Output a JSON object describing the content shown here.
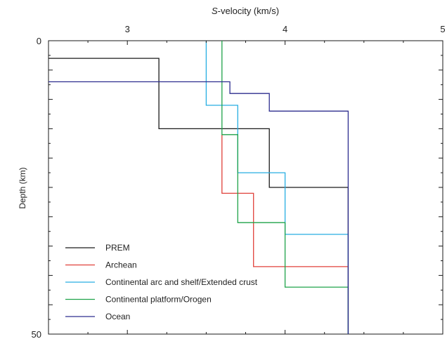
{
  "chart_data": {
    "type": "line",
    "title": "",
    "xlabel_prefix": "S",
    "xlabel_rest": "-velocity (km/s)",
    "ylabel": "Depth (km)",
    "xlim": [
      2.5,
      5
    ],
    "ylim": [
      0,
      50
    ],
    "x_ticks": [
      3,
      4,
      5
    ],
    "y_ticks": [
      0,
      50
    ],
    "x_axis_position": "top",
    "y_inverted": true,
    "grid": false,
    "legend_position": "bottom-left",
    "series": [
      {
        "name": "PREM",
        "color": "#1a1a1a",
        "x": [
          2.5,
          3.2,
          3.2,
          3.2,
          3.2,
          3.9,
          3.9,
          4.4,
          4.4
        ],
        "y": [
          3,
          3,
          3,
          15,
          15,
          15,
          25,
          25,
          50
        ]
      },
      {
        "name": "Archean",
        "color": "#e0403a",
        "x": [
          3.6,
          3.6,
          3.6,
          3.8,
          3.8,
          4.4,
          4.4
        ],
        "y": [
          16,
          16,
          26,
          26,
          38.5,
          38.5,
          50
        ]
      },
      {
        "name": "Continental arc and shelf/Extended crust",
        "color": "#27aee2",
        "x": [
          3.5,
          3.5,
          3.7,
          3.7,
          4.0,
          4.0,
          4.4,
          4.4
        ],
        "y": [
          0,
          11,
          11,
          22.5,
          22.5,
          33,
          33,
          50
        ]
      },
      {
        "name": "Continental platform/Orogen",
        "color": "#1fa34a",
        "x": [
          3.6,
          3.6,
          3.7,
          3.7,
          4.0,
          4.0,
          4.4,
          4.4
        ],
        "y": [
          0,
          16,
          16,
          31,
          31,
          42,
          42,
          50
        ]
      },
      {
        "name": "Ocean",
        "color": "#2e2e8f",
        "x": [
          2.5,
          3.65,
          3.65,
          3.9,
          3.9,
          4.4,
          4.4
        ],
        "y": [
          7,
          7,
          9,
          9,
          12,
          12,
          50
        ]
      }
    ]
  }
}
